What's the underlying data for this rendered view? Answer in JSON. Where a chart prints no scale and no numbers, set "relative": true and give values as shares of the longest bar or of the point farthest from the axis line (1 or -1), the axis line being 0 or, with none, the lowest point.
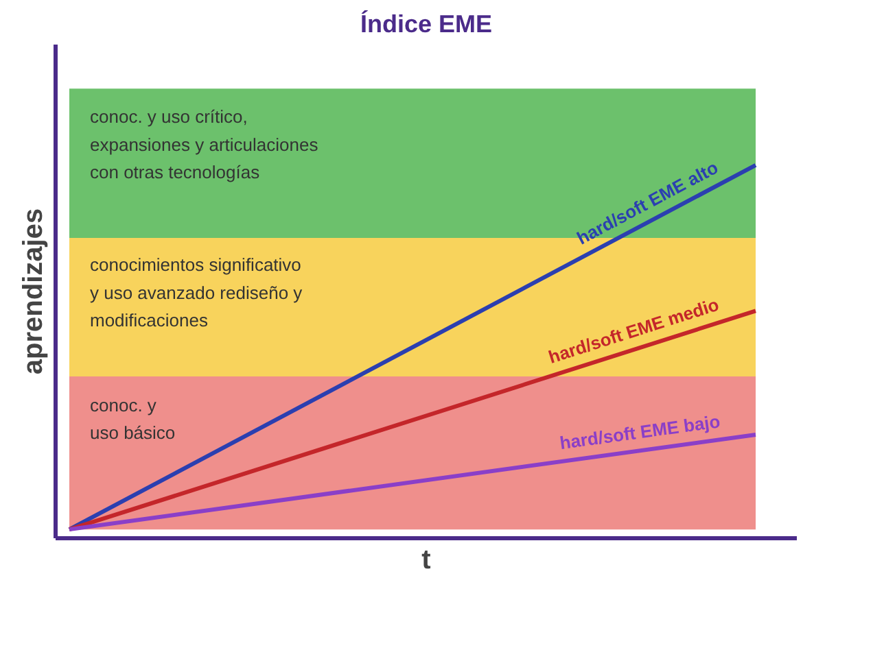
{
  "chart_data": {
    "type": "line",
    "title": "Índice EME",
    "xlabel": "t",
    "ylabel": "aprendizajes",
    "relative": true,
    "marker": "none",
    "line_style": "solid",
    "categories": [
      null,
      null
    ],
    "series": [
      {
        "name": "hard/soft EME alto",
        "color": "#2b3fb0",
        "values": [
          0,
          1
        ]
      },
      {
        "name": "hard/soft EME medio",
        "color": "#c4262a",
        "values": [
          0,
          0.6
        ]
      },
      {
        "name": "hard/soft EME bajo",
        "color": "#8a3fc8",
        "values": [
          0,
          0.26
        ]
      }
    ],
    "bands": [
      {
        "axis": "y",
        "from": 0,
        "to": 0.42,
        "label": "conoc. y\nuso básico",
        "color": "#ef8f8c"
      },
      {
        "axis": "y",
        "from": 0.42,
        "to": 0.8,
        "label": "conocimientos significativo\ny uso avanzado rediseño y\nmodificaciones",
        "color": "#f8d35c"
      },
      {
        "axis": "y",
        "from": 0.8,
        "to": 1.21,
        "label": "conoc. y uso crítico,\nexpansiones y articulaciones\ncon otras tecnologías",
        "color": "#6cc16c"
      }
    ]
  }
}
